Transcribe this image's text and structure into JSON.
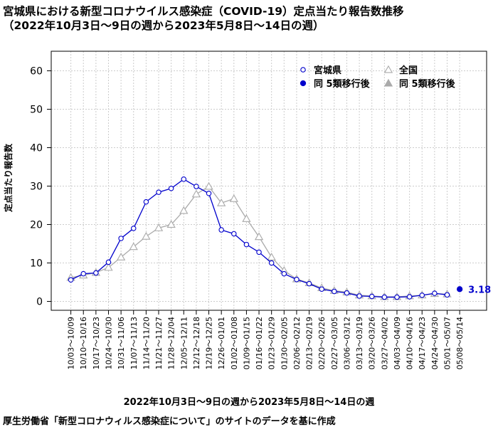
{
  "title_line1": "宮城県における新型コロナウイルス感染症（COVID-19）定点当たり報告数推移",
  "title_line2": "（2022年10月3日～9日の週から2023年5月8日～14日の週）",
  "source_note": "厚生労働省「新型コロナウィルス感染症について」のサイトのデータを基に作成",
  "colors": {
    "miyagi": "#0000cc",
    "national": "#aaaaaa",
    "grid": "#cccccc",
    "annotation": "#0000cc"
  },
  "chart_data": {
    "type": "line",
    "xlabel": "2022年10月3日～9日の週から2023年5月8日～14日の週",
    "ylabel": "定点当たり報告数",
    "ylim": [
      0,
      65
    ],
    "yticks": [
      0,
      10,
      20,
      30,
      40,
      50,
      60
    ],
    "grid": true,
    "legend_position": "top-right",
    "categories": [
      "10/03～10/09",
      "10/10～10/16",
      "10/17～10/23",
      "10/24～10/30",
      "10/31～11/06",
      "11/07～11/13",
      "11/14～11/20",
      "11/21～11/27",
      "11/28～12/04",
      "12/05～12/11",
      "12/12～12/18",
      "12/19～12/25",
      "12/26～01/01",
      "01/02～01/08",
      "01/09～01/15",
      "01/16～01/22",
      "01/23～01/29",
      "01/30～02/05",
      "02/06～02/12",
      "02/13～02/19",
      "02/20～02/26",
      "02/27～03/05",
      "03/06～03/12",
      "03/13～03/19",
      "03/20～03/26",
      "03/27～04/02",
      "04/03～04/09",
      "04/10～04/16",
      "04/17～04/23",
      "04/24～04/30",
      "05/01～05/07",
      "05/08～05/14"
    ],
    "series": [
      {
        "name": "宮城県",
        "marker": "open-circle",
        "values": [
          5.6,
          7.2,
          7.4,
          10.2,
          16.4,
          19.0,
          25.9,
          28.4,
          29.4,
          31.8,
          29.9,
          28.1,
          18.6,
          17.6,
          14.8,
          12.8,
          10.0,
          7.2,
          5.7,
          4.6,
          3.2,
          2.6,
          2.2,
          1.4,
          1.3,
          1.1,
          1.1,
          1.2,
          1.6,
          2.1,
          1.7,
          null
        ]
      },
      {
        "name": "全国",
        "marker": "open-triangle",
        "values": [
          6.2,
          6.8,
          7.5,
          8.8,
          11.5,
          14.2,
          16.9,
          19.1,
          20.0,
          23.6,
          27.9,
          29.9,
          25.6,
          26.7,
          21.5,
          16.8,
          11.5,
          8.0,
          5.8,
          4.8,
          3.5,
          2.8,
          2.4,
          1.6,
          1.4,
          1.2,
          1.2,
          1.4,
          1.6,
          2.0,
          1.9,
          null
        ]
      },
      {
        "name": "同 5類移行後",
        "marker": "filled-circle",
        "values": [
          null,
          null,
          null,
          null,
          null,
          null,
          null,
          null,
          null,
          null,
          null,
          null,
          null,
          null,
          null,
          null,
          null,
          null,
          null,
          null,
          null,
          null,
          null,
          null,
          null,
          null,
          null,
          null,
          null,
          null,
          null,
          3.18
        ]
      },
      {
        "name": "同 5類移行後",
        "marker": "filled-triangle",
        "values": [
          null,
          null,
          null,
          null,
          null,
          null,
          null,
          null,
          null,
          null,
          null,
          null,
          null,
          null,
          null,
          null,
          null,
          null,
          null,
          null,
          null,
          null,
          null,
          null,
          null,
          null,
          null,
          null,
          null,
          null,
          null,
          null
        ]
      }
    ],
    "annotations": [
      {
        "text": "3.18"
      }
    ]
  }
}
